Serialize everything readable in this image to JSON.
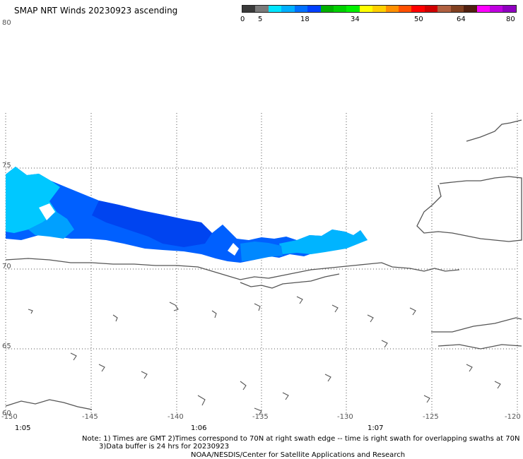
{
  "title": "SMAP NRT Winds 20230923 ascending",
  "colorbar": {
    "tick_labels": [
      "0",
      "5",
      "18",
      "34",
      "50",
      "64",
      "80"
    ],
    "segments": [
      "#3a3a3a",
      "#7a7a7a",
      "#00e5ff",
      "#00b0ff",
      "#0070ff",
      "#0040ff",
      "#00b000",
      "#00d000",
      "#00f000",
      "#ffff00",
      "#ffd000",
      "#ff9000",
      "#ff5000",
      "#ff0000",
      "#d00000",
      "#b06040",
      "#804020",
      "#502010",
      "#ff00ff",
      "#c000e0",
      "#9000c0"
    ]
  },
  "map": {
    "lat_labels": [
      "80",
      "75",
      "70",
      "65",
      "60"
    ],
    "lon_labels": [
      "-150",
      "-145",
      "-140",
      "-135",
      "-130",
      "-125",
      "-120"
    ],
    "time_labels": [
      "1:05",
      "1:06",
      "1:07"
    ],
    "swath_colors": {
      "light": "#00d6ff",
      "mid": "#0090ff",
      "dark": "#0048f0"
    },
    "coast_color": "#555555",
    "grid_color": "#555555"
  },
  "notes": {
    "line1": "Note: 1) Times are GMT 2)Times correspond to 70N at right swath edge -- time is right swath for overlapping swaths at 70N",
    "line2": "3)Data buffer is 24 hrs for 20230923",
    "line3": "NOAA/NESDIS/Center for Satellite Applications and Research"
  }
}
